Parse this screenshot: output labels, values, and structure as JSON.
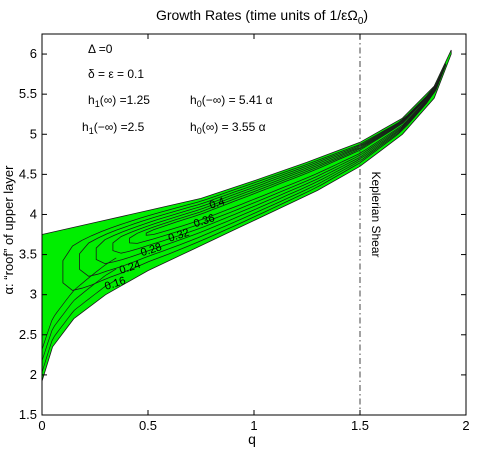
{
  "chart_data": {
    "type": "contour",
    "title": "Growth Rates (time units of 1/εΩ",
    "title_subscript": "0",
    "title_close": ")",
    "xlabel": "q",
    "ylabel": "α: “roof” of upper layer",
    "xlim": [
      0,
      2
    ],
    "ylim": [
      1.5,
      6.25
    ],
    "x_ticks": [
      0,
      0.5,
      1,
      1.5,
      2
    ],
    "x_tick_labels": [
      "0",
      "0.5",
      "1",
      "1.5",
      "2"
    ],
    "y_ticks": [
      1.5,
      2,
      2.5,
      3,
      3.5,
      4,
      4.5,
      5,
      5.5,
      6
    ],
    "y_tick_labels": [
      "1.5",
      "2",
      "2.5",
      "3",
      "3.5",
      "4",
      "4.5",
      "5",
      "5.5",
      "6"
    ],
    "fill_color": "#00ee00",
    "line_color": "#1a1a1a",
    "region_upper_boundary": [
      [
        0,
        3.75
      ],
      [
        0.25,
        3.9
      ],
      [
        0.5,
        4.05
      ],
      [
        0.75,
        4.2
      ],
      [
        1.0,
        4.42
      ],
      [
        1.25,
        4.65
      ],
      [
        1.5,
        4.9
      ],
      [
        1.7,
        5.2
      ],
      [
        1.85,
        5.6
      ],
      [
        1.93,
        6.05
      ]
    ],
    "region_lower_boundary": [
      [
        0,
        1.92
      ],
      [
        0.05,
        2.35
      ],
      [
        0.15,
        2.7
      ],
      [
        0.3,
        3.0
      ],
      [
        0.5,
        3.3
      ],
      [
        0.7,
        3.55
      ],
      [
        0.9,
        3.8
      ],
      [
        1.1,
        4.05
      ],
      [
        1.3,
        4.3
      ],
      [
        1.5,
        4.6
      ],
      [
        1.7,
        5.0
      ],
      [
        1.85,
        5.45
      ],
      [
        1.93,
        6.0
      ]
    ],
    "contour_levels": [
      0.16,
      0.24,
      0.28,
      0.32,
      0.36,
      0.4
    ],
    "contour_labels": [
      {
        "text": "0.16",
        "q": 0.35,
        "alpha": 3.1
      },
      {
        "text": "0.24",
        "q": 0.42,
        "alpha": 3.3
      },
      {
        "text": "0.28",
        "q": 0.52,
        "alpha": 3.52
      },
      {
        "text": "0.32",
        "q": 0.65,
        "alpha": 3.7
      },
      {
        "text": "0.36",
        "q": 0.77,
        "alpha": 3.88
      },
      {
        "text": "0.4",
        "q": 0.83,
        "alpha": 4.1
      }
    ],
    "reference_line": {
      "q": 1.5,
      "label": "Keplerian Shear"
    },
    "annotations": {
      "delta": "Δ =0",
      "delta_eps": "δ = ε = 0.1",
      "h1_pos": {
        "prefix": "h",
        "sub": "1",
        "rest": "(∞) =1.25"
      },
      "h1_neg": {
        "prefix": "h",
        "sub": "1",
        "rest": "(−∞) =2.5"
      },
      "h0_neg": {
        "prefix": "h",
        "sub": "0",
        "rest": "(−∞) = 5.41 α"
      },
      "h0_pos": {
        "prefix": "h",
        "sub": "0",
        "rest": "(∞) = 3.55 α"
      }
    }
  }
}
